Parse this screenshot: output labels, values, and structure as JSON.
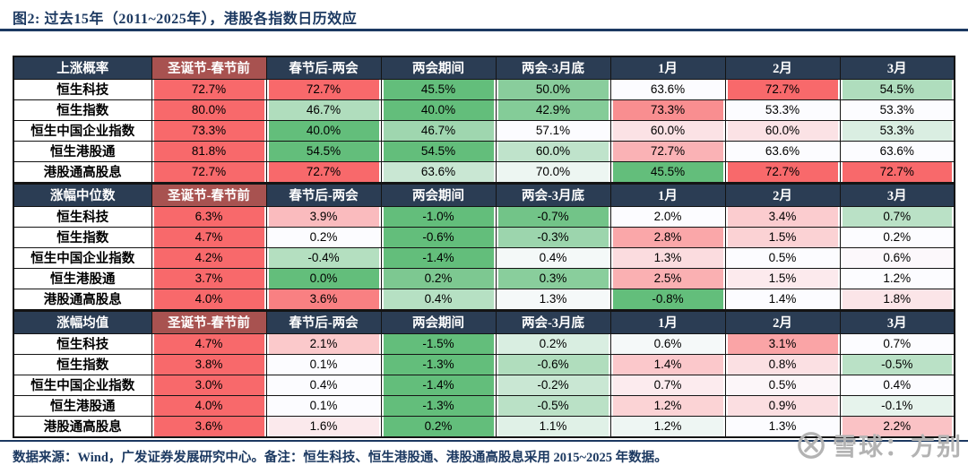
{
  "page": {
    "title": "图2:  过去15年（2011~2025年），港股各指数日历效应",
    "footer": "数据来源：Wind，广发证券发展研究中心。备注：恒生科技、恒生港股通、港股通高股息采用 2015~2025 年数据。",
    "watermark": "雪球：方别"
  },
  "colors": {
    "title_navy": "#1c3961",
    "header_navy": "#2b3d54",
    "header_maroon": "#a85250",
    "scale_red_max": "#F8696B",
    "scale_white_mid": "#FCFCFF",
    "scale_green_min": "#63BE7B",
    "watermark_gray": "#b3b3b3",
    "cell_border": "#141414"
  },
  "color_scale_note": "3-color scale applied per row: row max = red, row median = white, row min = green",
  "chart_data": [
    {
      "type": "table",
      "title": "上涨概率",
      "value_suffix": "%",
      "columns": [
        "圣诞节-春节前",
        "春节后-两会",
        "两会期间",
        "两会-3月底",
        "1月",
        "2月",
        "3月"
      ],
      "rows": [
        "恒生科技",
        "恒生指数",
        "恒生中国企业指数",
        "恒生港股通",
        "港股通高股息"
      ],
      "values": [
        [
          72.7,
          72.7,
          45.5,
          50.0,
          63.6,
          72.7,
          54.5
        ],
        [
          80.0,
          46.7,
          40.0,
          42.9,
          73.3,
          53.3,
          53.3
        ],
        [
          73.3,
          40.0,
          46.7,
          57.1,
          60.0,
          60.0,
          53.3
        ],
        [
          81.8,
          54.5,
          54.5,
          60.0,
          72.7,
          63.6,
          63.6
        ],
        [
          72.7,
          72.7,
          63.6,
          70.0,
          45.5,
          72.7,
          72.7
        ]
      ]
    },
    {
      "type": "table",
      "title": "涨幅中位数",
      "value_suffix": "%",
      "columns": [
        "圣诞节-春节前",
        "春节后-两会",
        "两会期间",
        "两会-3月底",
        "1月",
        "2月",
        "3月"
      ],
      "rows": [
        "恒生科技",
        "恒生指数",
        "恒生中国企业指数",
        "恒生港股通",
        "港股通高股息"
      ],
      "values": [
        [
          6.3,
          3.9,
          -1.0,
          -0.7,
          2.0,
          3.4,
          0.7
        ],
        [
          4.7,
          0.2,
          -0.6,
          -0.3,
          2.8,
          1.5,
          0.2
        ],
        [
          4.2,
          -0.4,
          -1.4,
          0.4,
          1.3,
          0.5,
          0.6
        ],
        [
          3.7,
          0.0,
          0.2,
          0.3,
          2.5,
          1.5,
          1.2
        ],
        [
          4.0,
          3.6,
          0.4,
          1.3,
          -0.8,
          1.4,
          1.8
        ]
      ]
    },
    {
      "type": "table",
      "title": "涨幅均值",
      "value_suffix": "%",
      "columns": [
        "圣诞节-春节前",
        "春节后-两会",
        "两会期间",
        "两会-3月底",
        "1月",
        "2月",
        "3月"
      ],
      "rows": [
        "恒生科技",
        "恒生指数",
        "恒生中国企业指数",
        "恒生港股通",
        "港股通高股息"
      ],
      "values": [
        [
          4.7,
          2.1,
          -1.5,
          0.2,
          0.6,
          3.1,
          0.7
        ],
        [
          3.8,
          0.1,
          -1.3,
          -0.6,
          1.4,
          0.8,
          -0.5
        ],
        [
          3.0,
          0.4,
          -1.4,
          -0.2,
          0.7,
          0.5,
          0.4
        ],
        [
          4.0,
          0.1,
          -1.3,
          -0.5,
          1.2,
          0.9,
          -0.1
        ],
        [
          3.6,
          1.6,
          0.2,
          1.1,
          1.2,
          1.3,
          2.2
        ]
      ]
    }
  ]
}
